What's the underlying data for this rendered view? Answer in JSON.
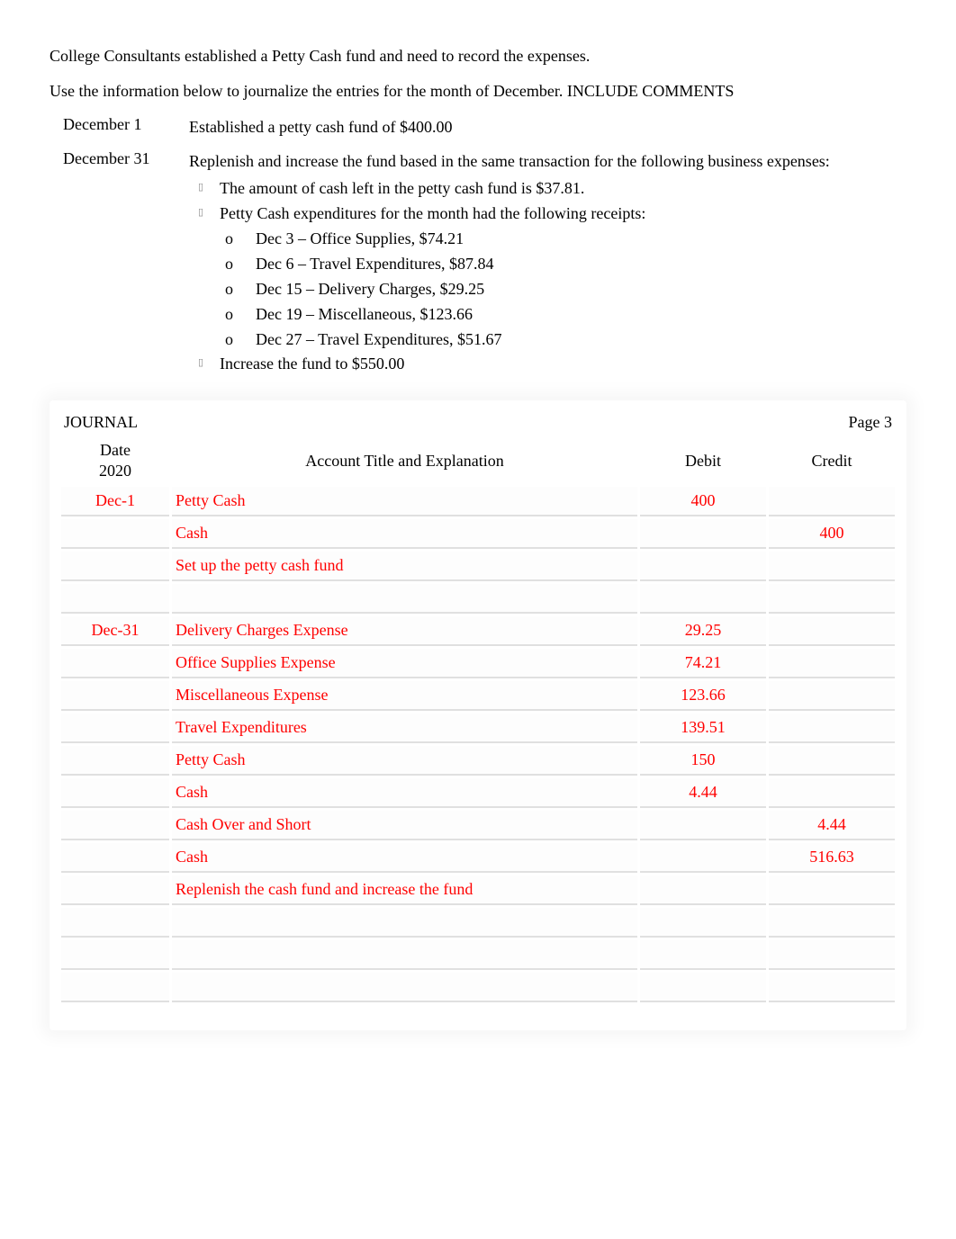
{
  "intro": {
    "line1": "College Consultants established a Petty Cash fund and need to record the expenses.",
    "line2": "Use the information below to journalize the entries for the month of December. INCLUDE COMMENTS"
  },
  "dates": [
    {
      "label": "December 1",
      "text": "Established a petty cash fund of $400.00",
      "bullets": []
    },
    {
      "label": "December 31",
      "text": "Replenish and increase the fund based in the same transaction for the following business expenses:",
      "bullets": [
        {
          "text": "The amount of cash left in the petty cash fund is $37.81.",
          "sub": []
        },
        {
          "text": "Petty Cash expenditures for the month had the following receipts:",
          "sub": [
            "Dec 3 – Office Supplies, $74.21",
            "Dec 6 – Travel Expenditures, $87.84",
            "Dec 15 – Delivery Charges, $29.25",
            "Dec 19 – Miscellaneous, $123.66",
            "Dec 27 – Travel Expenditures, $51.67"
          ]
        },
        {
          "text": "Increase the fund to $550.00",
          "sub": []
        }
      ]
    }
  ],
  "journal": {
    "title": "JOURNAL",
    "page": "Page 3",
    "columns": {
      "date": "Date\n2020",
      "acct": "Account Title and Explanation",
      "debit": "Debit",
      "credit": "Credit"
    },
    "rows": [
      {
        "date": "Dec-1",
        "acct": "Petty Cash",
        "debit": "400",
        "credit": "",
        "indent": 0
      },
      {
        "date": "",
        "acct": "Cash",
        "debit": "",
        "credit": "400",
        "indent": 1
      },
      {
        "date": "",
        "acct": "Set up the petty cash fund",
        "debit": "",
        "credit": "",
        "indent": 0
      },
      {
        "date": "",
        "acct": "",
        "debit": "",
        "credit": "",
        "indent": 0
      },
      {
        "date": "Dec-31",
        "acct": "Delivery Charges Expense",
        "debit": "29.25",
        "credit": "",
        "indent": 0
      },
      {
        "date": "",
        "acct": "Office Supplies Expense",
        "debit": "74.21",
        "credit": "",
        "indent": 0
      },
      {
        "date": "",
        "acct": "Miscellaneous Expense",
        "debit": "123.66",
        "credit": "",
        "indent": 0
      },
      {
        "date": "",
        "acct": "Travel Expenditures",
        "debit": "139.51",
        "credit": "",
        "indent": 0
      },
      {
        "date": "",
        "acct": "Petty Cash",
        "debit": "150",
        "credit": "",
        "indent": 0
      },
      {
        "date": "",
        "acct": "Cash",
        "debit": "4.44",
        "credit": "",
        "indent": 0
      },
      {
        "date": "",
        "acct": "Cash Over and Short",
        "debit": "",
        "credit": "4.44",
        "indent": 1
      },
      {
        "date": "",
        "acct": "Cash",
        "debit": "",
        "credit": "516.63",
        "indent": 1
      },
      {
        "date": "",
        "acct": "Replenish the cash fund and increase the fund",
        "debit": "",
        "credit": "",
        "indent": 0
      },
      {
        "date": "",
        "acct": "",
        "debit": "",
        "credit": "",
        "indent": 0
      },
      {
        "date": "",
        "acct": "",
        "debit": "",
        "credit": "",
        "indent": 0
      },
      {
        "date": "",
        "acct": "",
        "debit": "",
        "credit": "",
        "indent": 0
      }
    ],
    "colors": {
      "entry_text": "#ff0000",
      "header_text": "#000000",
      "cell_border": "#e0e0e0",
      "shadow": "rgba(0,0,0,0.04)"
    }
  }
}
